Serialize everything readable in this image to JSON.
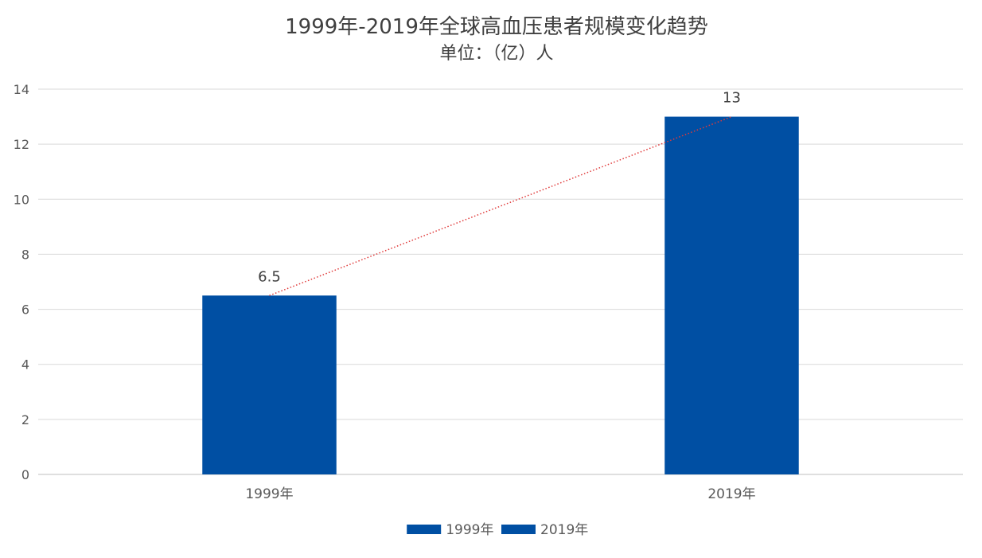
{
  "chart_data": {
    "type": "bar",
    "title": "1999年-2019年全球高血压患者规模变化趋势",
    "subtitle": "单位：（亿）人",
    "categories": [
      "1999年",
      "2019年"
    ],
    "series": [
      {
        "name": "",
        "values": [
          6.5,
          13
        ],
        "data_labels": [
          "6.5",
          "13"
        ]
      }
    ],
    "legend": {
      "placement": "bottom",
      "entries": [
        "1999年",
        "2019年"
      ]
    },
    "trendline": {
      "style": "dotted",
      "color": "#e03a3a"
    },
    "ylim": [
      0,
      14
    ],
    "yticks": [
      0,
      2,
      4,
      6,
      8,
      10,
      12,
      14
    ],
    "grid": true,
    "colors": {
      "bar": "#004fa3",
      "grid": "#d9d9d9",
      "text": "#404040",
      "axis_text": "#595959"
    }
  }
}
